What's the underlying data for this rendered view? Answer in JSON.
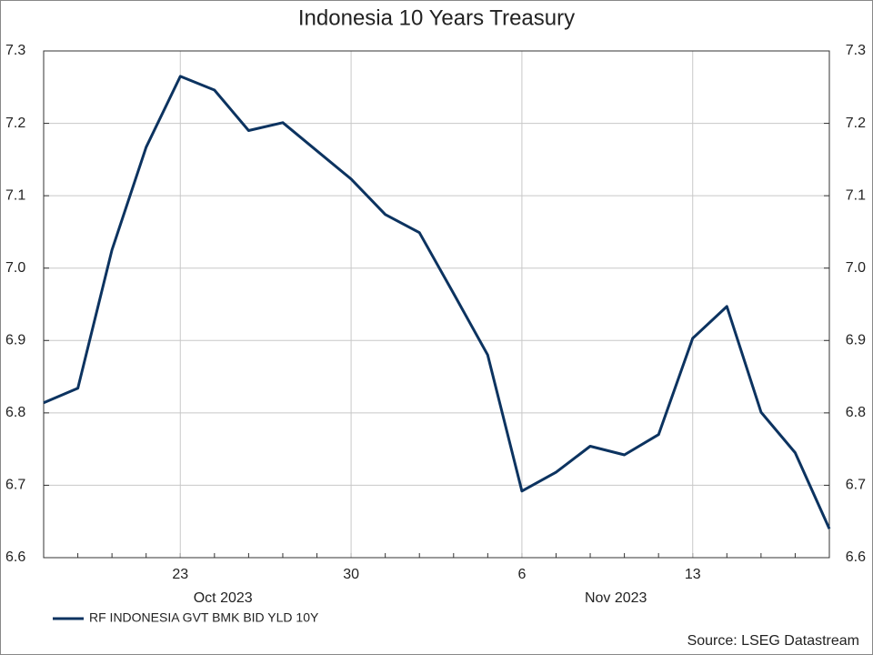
{
  "chart_data": {
    "type": "line",
    "title": "Indonesia 10 Years Treasury",
    "categories": [
      null,
      null,
      null,
      null,
      "23",
      null,
      null,
      null,
      null,
      "30",
      null,
      null,
      null,
      null,
      "6",
      null,
      null,
      null,
      null,
      "13",
      null,
      null,
      null,
      null
    ],
    "month_groups": [
      {
        "label": "Oct 2023",
        "start": 0
      },
      {
        "label": "Nov 2023",
        "start": 11
      }
    ],
    "series": [
      {
        "name": "RF INDONESIA GVT BMK BID YLD 10Y",
        "color": "#0c3360",
        "values": [
          6.814,
          6.834,
          7.025,
          7.167,
          7.265,
          7.246,
          7.19,
          7.201,
          7.162,
          7.123,
          7.074,
          7.049,
          6.965,
          6.88,
          6.692,
          6.718,
          6.754,
          6.742,
          6.77,
          6.903,
          6.947,
          6.801,
          6.745,
          6.64
        ]
      }
    ],
    "ylim": [
      6.6,
      7.3
    ],
    "yticks": [
      6.6,
      6.7,
      6.8,
      6.9,
      {
        "value": 7,
        "label": "7.0"
      },
      7.1,
      7.2,
      7.3
    ],
    "grid": true,
    "legend": "bottom-left",
    "source": "Source: LSEG Datastream"
  }
}
